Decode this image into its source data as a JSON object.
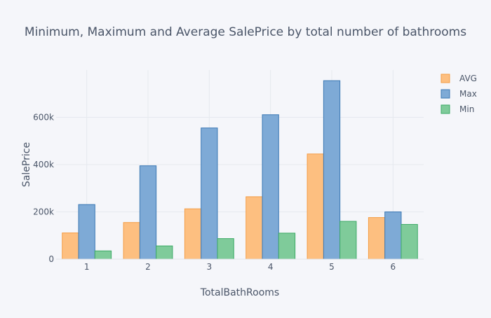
{
  "chart_data": {
    "type": "bar",
    "title": "Minimum, Maximum and Average SalePrice by total number of bathrooms",
    "xlabel": "TotalBathRooms",
    "ylabel": "SalePrice",
    "categories": [
      "1",
      "2",
      "3",
      "4",
      "5",
      "6"
    ],
    "ylim": [
      0,
      800000
    ],
    "yticks": [
      {
        "value": 0,
        "label": "0"
      },
      {
        "value": 200000,
        "label": "200k"
      },
      {
        "value": 400000,
        "label": "400k"
      },
      {
        "value": 600000,
        "label": "600k"
      }
    ],
    "grid": true,
    "legend_position": "top-right",
    "series": [
      {
        "name": "AVG",
        "color": "#fdbf80",
        "stroke": "#f49d45",
        "values": [
          111000,
          155000,
          213000,
          264000,
          445000,
          176000
        ]
      },
      {
        "name": "Max",
        "color": "#7eaad6",
        "stroke": "#3b78b4",
        "values": [
          231000,
          395000,
          555000,
          611000,
          755000,
          200000
        ]
      },
      {
        "name": "Min",
        "color": "#7fcb9a",
        "stroke": "#3caa65",
        "values": [
          35000,
          56000,
          87000,
          110000,
          160000,
          147000
        ]
      }
    ]
  }
}
